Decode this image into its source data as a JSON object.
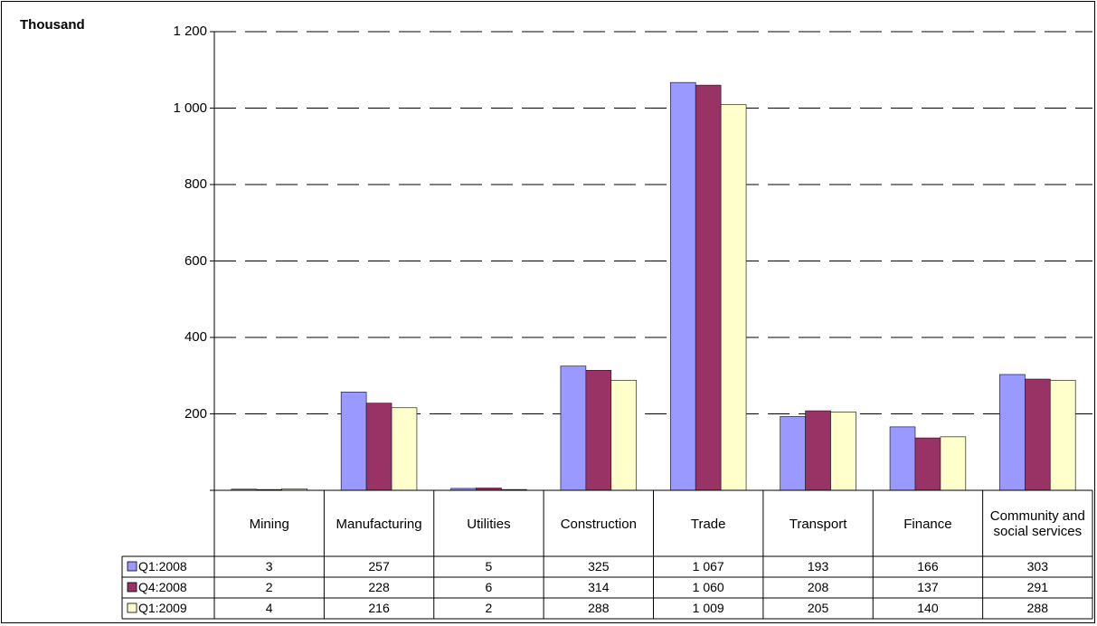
{
  "chart_data": {
    "type": "bar",
    "y_label": "Thousand",
    "categories": [
      "Mining",
      "Manufacturing",
      "Utilities",
      "Construction",
      "Trade",
      "Transport",
      "Finance",
      "Community and social services"
    ],
    "series": [
      {
        "name": "Q1:2008",
        "color": "#9999ff",
        "values": [
          3,
          257,
          5,
          325,
          1067,
          193,
          166,
          303
        ],
        "value_labels": [
          "3",
          "257",
          "5",
          "325",
          "1 067",
          "193",
          "166",
          "303"
        ]
      },
      {
        "name": "Q4:2008",
        "color": "#993366",
        "values": [
          2,
          228,
          6,
          314,
          1060,
          208,
          137,
          291
        ],
        "value_labels": [
          "2",
          "228",
          "6",
          "314",
          "1 060",
          "208",
          "137",
          "291"
        ]
      },
      {
        "name": "Q1:2009",
        "color": "#ffffcc",
        "values": [
          4,
          216,
          2,
          288,
          1009,
          205,
          140,
          288
        ],
        "value_labels": [
          "4",
          "216",
          "2",
          "288",
          "1 009",
          "205",
          "140",
          "288"
        ]
      }
    ],
    "ylim": [
      0,
      1200
    ],
    "yticks": [
      200,
      400,
      600,
      800,
      {
        "value": 1000,
        "label": "1 000"
      },
      {
        "value": 1200,
        "label": "1 200"
      }
    ],
    "grid": true
  }
}
